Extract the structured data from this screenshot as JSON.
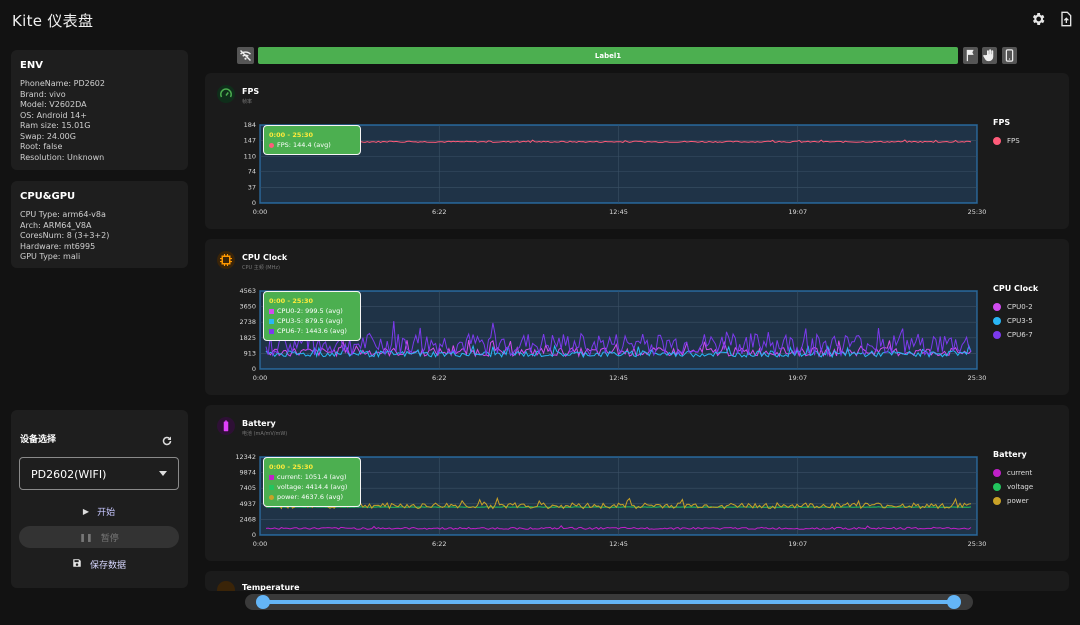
{
  "app": {
    "title": "Kite 仪表盘"
  },
  "toolbar": {
    "label_bar": "Label1"
  },
  "env": {
    "title": "ENV",
    "lines": [
      "PhoneName: PD2602",
      "Brand: vivo",
      "Model: V2602DA",
      "OS: Android 14+",
      "Ram size: 15.01G",
      "Swap: 24.00G",
      "Root: false",
      "Resolution: Unknown"
    ]
  },
  "cpugpu": {
    "title": "CPU&GPU",
    "lines": [
      "CPU Type: arm64-v8a",
      "Arch: ARM64_V8A",
      "CoresNum: 8 (3+3+2)",
      "Hardware: mt6995",
      "GPU Type: mali"
    ]
  },
  "device": {
    "title": "设备选择",
    "selected": "PD2602(WIFI)",
    "start_label": "开始",
    "pause_label": "暂停",
    "save_label": "保存数据"
  },
  "colors": {
    "accent_green": "#4caf50",
    "chart_border": "#2196f3",
    "slider": "#64b5f6"
  },
  "panels": [
    {
      "title": "FPS",
      "subtitle": "帧率",
      "icon": "speedometer-icon",
      "icon_color": "#4caf50",
      "tooltip_range": "0:00 - 25:30",
      "tooltip_lines": [
        "FPS: 144.4 (avg)"
      ],
      "legend_title": "FPS"
    },
    {
      "title": "CPU Clock",
      "subtitle": "CPU 主频 (MHz)",
      "icon": "cpu-chip-icon",
      "icon_color": "#ff9800",
      "tooltip_range": "0:00 - 25:30",
      "tooltip_lines": [
        "CPU0-2: 999.5 (avg)",
        "CPU3-5: 879.5 (avg)",
        "CPU6-7: 1443.6 (avg)"
      ],
      "legend_title": "CPU Clock"
    },
    {
      "title": "Battery",
      "subtitle": "电池 (mA/mV/mW)",
      "icon": "battery-icon",
      "icon_color": "#e040fb",
      "tooltip_range": "0:00 - 25:30",
      "tooltip_lines": [
        "current: 1051.4 (avg)",
        "voltage: 4414.4 (avg)",
        "power: 4637.6 (avg)"
      ],
      "legend_title": "Battery"
    },
    {
      "title": "Temperature"
    }
  ],
  "chart_data": [
    {
      "type": "line",
      "title": "FPS",
      "x_ticks": [
        "0:00",
        "6:22",
        "12:45",
        "19:07",
        "25:30"
      ],
      "y_ticks": [
        0,
        37,
        74,
        110,
        147,
        184
      ],
      "ylim": [
        0,
        184
      ],
      "series": [
        {
          "name": "FPS",
          "color": "#ff5c7a",
          "avg": 144.4,
          "noise": 3
        }
      ]
    },
    {
      "type": "line",
      "title": "CPU Clock",
      "x_ticks": [
        "0:00",
        "6:22",
        "12:45",
        "19:07",
        "25:30"
      ],
      "y_ticks": [
        0,
        913,
        1825,
        2738,
        3650,
        4563
      ],
      "ylim": [
        0,
        4563
      ],
      "series": [
        {
          "name": "CPU0-2",
          "color": "#d14cf0",
          "avg": 999.5,
          "noise": 500
        },
        {
          "name": "CPU3-5",
          "color": "#29b6f6",
          "avg": 879.5,
          "noise": 350
        },
        {
          "name": "CPU6-7",
          "color": "#7c3aed",
          "avg": 1443.6,
          "noise": 1300
        }
      ]
    },
    {
      "type": "line",
      "title": "Battery",
      "x_ticks": [
        "0:00",
        "6:22",
        "12:45",
        "19:07",
        "25:30"
      ],
      "y_ticks": [
        0,
        2468,
        4937,
        7405,
        9874,
        12342
      ],
      "ylim": [
        0,
        12342
      ],
      "series": [
        {
          "name": "current",
          "color": "#c020c8",
          "avg": 1051.4,
          "noise": 300
        },
        {
          "name": "voltage",
          "color": "#22c55e",
          "avg": 4414.4,
          "noise": 60
        },
        {
          "name": "power",
          "color": "#c9a227",
          "avg": 4637.6,
          "noise": 900
        }
      ]
    }
  ]
}
